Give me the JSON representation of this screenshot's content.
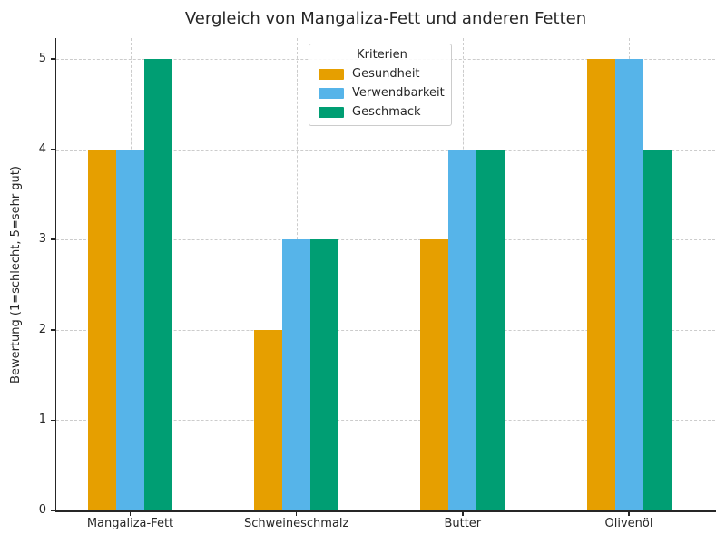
{
  "chart_data": {
    "type": "bar",
    "title": "Vergleich von Mangaliza-Fett und anderen Fetten",
    "xlabel": "",
    "ylabel": "Bewertung (1=schlecht, 5=sehr gut)",
    "categories": [
      "Mangaliza-Fett",
      "Schweineschmalz",
      "Butter",
      "Olivenöl"
    ],
    "series": [
      {
        "name": "Gesundheit",
        "color": "#E69F00",
        "values": [
          4,
          2,
          3,
          5
        ]
      },
      {
        "name": "Verwendbarkeit",
        "color": "#56B4E9",
        "values": [
          4,
          3,
          4,
          5
        ]
      },
      {
        "name": "Geschmack",
        "color": "#009E73",
        "values": [
          5,
          3,
          4,
          4
        ]
      }
    ],
    "ylim": [
      0,
      5
    ],
    "yticks": [
      0,
      1,
      2,
      3,
      4,
      5
    ],
    "legend_title": "Kriterien",
    "legend_position": "upper center",
    "grid": true,
    "grid_style": "dashed",
    "style": {
      "background": "#ffffff",
      "text_color": "#262626",
      "spine_color": "#262626",
      "grid_color": "#cccccc",
      "legend_border_color": "#cccccc"
    }
  }
}
